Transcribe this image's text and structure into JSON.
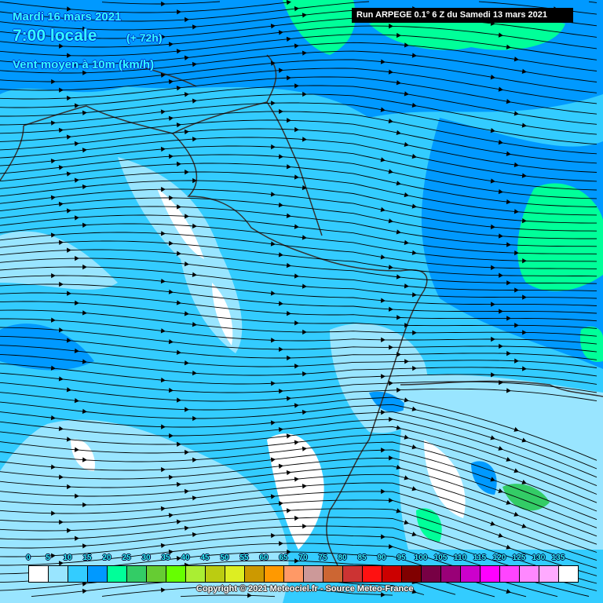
{
  "header": {
    "date": "Mardi 16 mars 2021",
    "time": "7:00 locale",
    "lead": "(+ 72h)",
    "parameter": "Vent moyen à 10m (km/h)",
    "run": "Run ARPEGE 0.1° 6 Z du Samedi 13 mars 2021"
  },
  "legend": {
    "labels": [
      "0",
      "5",
      "10",
      "15",
      "20",
      "25",
      "30",
      "35",
      "40",
      "45",
      "50",
      "55",
      "60",
      "65",
      "70",
      "75",
      "80",
      "85",
      "90",
      "95",
      "100",
      "105",
      "110",
      "115",
      "120",
      "125",
      "130",
      "135"
    ],
    "colors": [
      "#ffffff",
      "#99e5ff",
      "#33ccff",
      "#0099ff",
      "#00ff99",
      "#33cc66",
      "#66cc33",
      "#66ff00",
      "#aaee33",
      "#bbcc11",
      "#ddee22",
      "#cc9900",
      "#ff9900",
      "#ff9966",
      "#cc9999",
      "#cc6633",
      "#cc3333",
      "#ff1111",
      "#cc0000",
      "#800000",
      "#770044",
      "#990077",
      "#cc00cc",
      "#ff00ff",
      "#ff44ff",
      "#ff88ff",
      "#ffaaff",
      "#ffffff"
    ]
  },
  "footer": {
    "copyright": "Copyright © 2021 Meteociel.fr - Source Meteo-France"
  }
}
